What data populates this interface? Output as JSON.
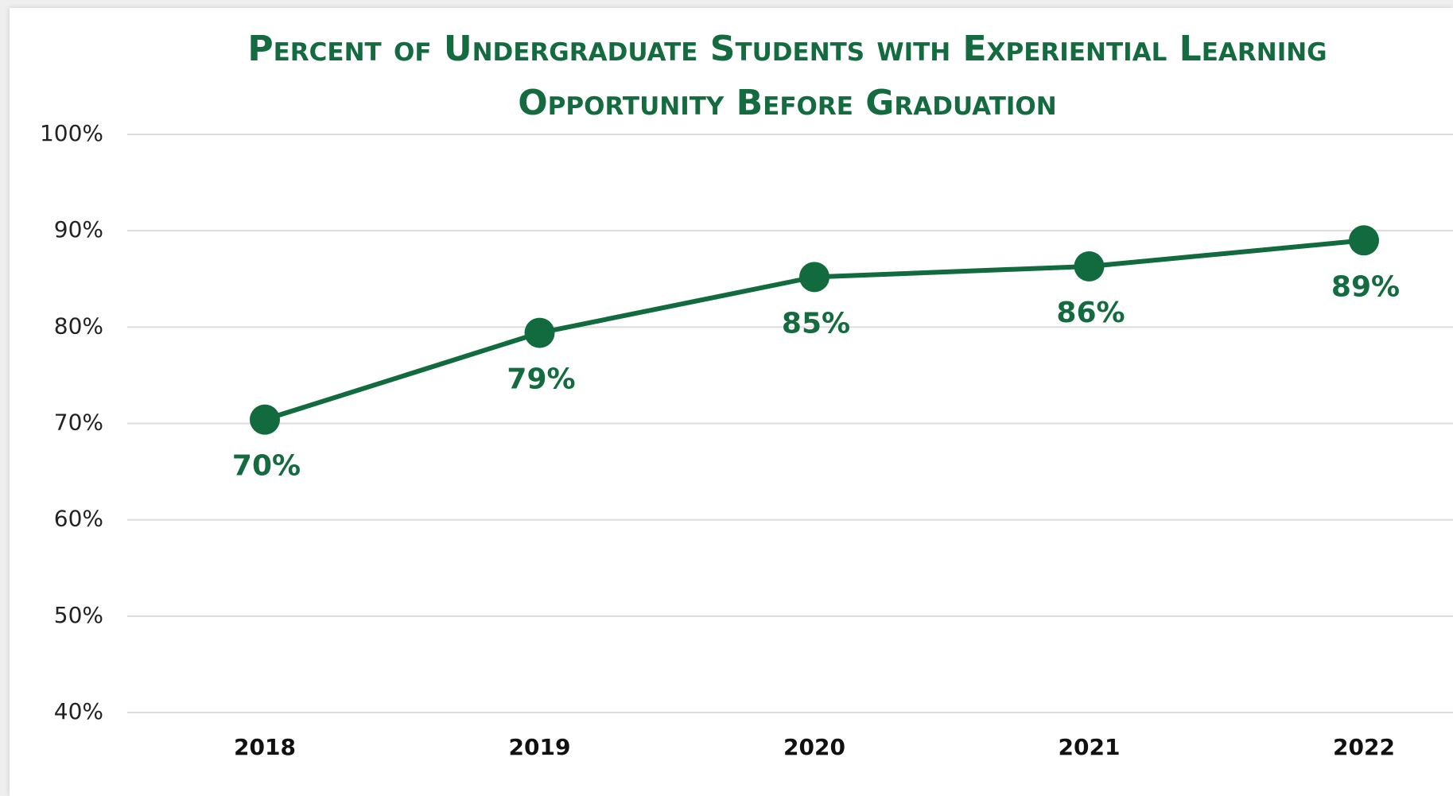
{
  "chart_data": {
    "type": "line",
    "title": "Percent of Undergraduate Students with Experiential Learning Opportunity Before Graduation",
    "categories": [
      "2018",
      "2019",
      "2020",
      "2021",
      "2022"
    ],
    "series": [
      {
        "name": "Percent",
        "color": "#116b3e",
        "values": [
          70.4,
          79.4,
          85.2,
          86.3,
          89
        ],
        "value_labels": [
          "70%",
          "79%",
          "85%",
          "86%",
          "89%"
        ]
      }
    ],
    "ylim": [
      40,
      100
    ],
    "yticks": [
      {
        "value": 40,
        "label": "40%"
      },
      {
        "value": 50,
        "label": "50%"
      },
      {
        "value": 60,
        "label": "60%"
      },
      {
        "value": 70,
        "label": "70%"
      },
      {
        "value": 80,
        "label": "80%"
      },
      {
        "value": 90,
        "label": "90%"
      },
      {
        "value": 100,
        "label": "100%"
      }
    ],
    "grid": true
  }
}
